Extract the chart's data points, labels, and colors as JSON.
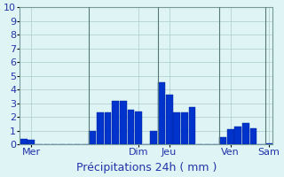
{
  "xlabel": "Précipitations 24h ( mm )",
  "background_color": "#dff5f5",
  "plot_bg_color": "#dff5f5",
  "bar_color": "#0033cc",
  "bar_edge_color": "#002299",
  "grid_color": "#aacccc",
  "ylim": [
    0,
    10
  ],
  "yticks": [
    0,
    1,
    2,
    3,
    4,
    5,
    6,
    7,
    8,
    9,
    10
  ],
  "bar_values": [
    0.4,
    0.35,
    0.0,
    0.0,
    0.0,
    0.0,
    0.0,
    0.0,
    0.0,
    1.0,
    2.3,
    2.35,
    3.2,
    3.2,
    2.5,
    2.4,
    0.0,
    1.0,
    4.5,
    3.6,
    2.3,
    2.3,
    2.7,
    0.0,
    0.0,
    0.0,
    0.5,
    1.1,
    1.3,
    1.55,
    1.2,
    0.0,
    0.1
  ],
  "n_bars": 33,
  "day_tick_positions": [
    1,
    15,
    19,
    27,
    32
  ],
  "day_labels": [
    "Mer",
    "Dim",
    "Jeu",
    "Ven",
    "Sam"
  ],
  "vline_x": [
    8.5,
    17.5,
    25.5,
    31.5
  ],
  "vline_color": "#557777",
  "xlabel_color": "#2233aa",
  "tick_label_color": "#2233aa",
  "xlabel_fontsize": 9,
  "ytick_fontsize": 8,
  "xtick_fontsize": 8
}
